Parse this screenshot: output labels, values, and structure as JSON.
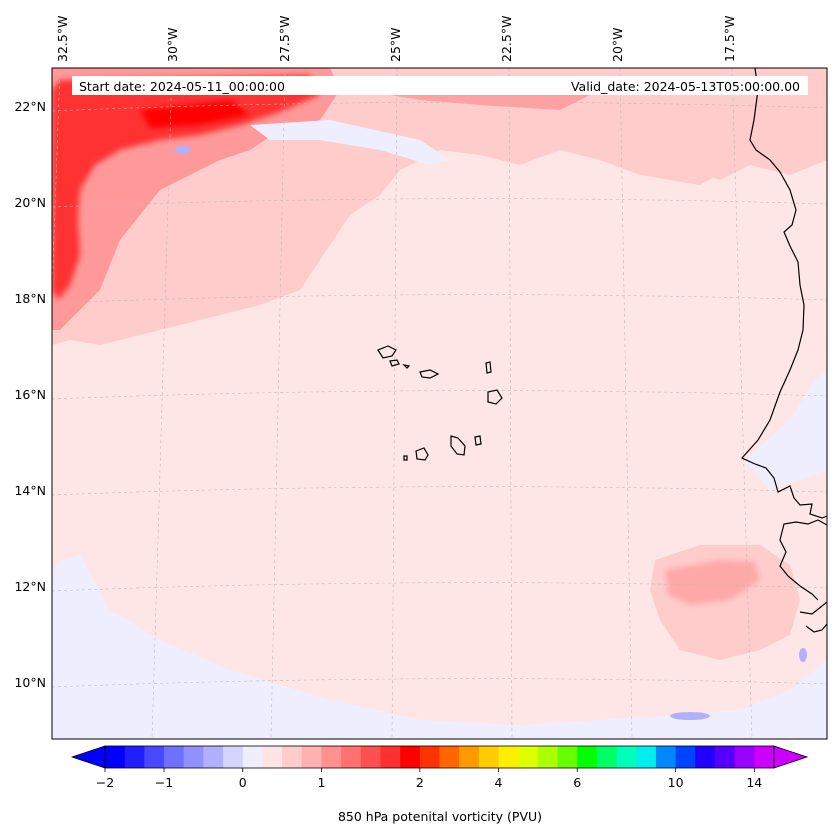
{
  "map": {
    "start_date": "Start date: 2024-05-11_00:00:00",
    "valid_date": "Valid_date: 2024-05-13T05:00:00.00",
    "lon_labels": [
      "32.5°W",
      "30°W",
      "27.5°W",
      "25°W",
      "22.5°W",
      "20°W",
      "17.5°W"
    ],
    "lat_labels": [
      "22°N",
      "20°N",
      "18°N",
      "16°N",
      "14°N",
      "12°N",
      "10°N"
    ],
    "gridlines": "dashed-light-grey",
    "colors": {
      "background_field": "#ffe6e6",
      "near_zero_negative": "#eeeeff",
      "weak_positive": "#ffcccc",
      "moderate_positive": "#ff9999",
      "strong_positive": "#ff3333",
      "coastline": "#000000"
    }
  },
  "colorbar": {
    "label": "850 hPa potenital vorticity (PVU)",
    "tick_labels": [
      "−2",
      "−1",
      "0",
      "1",
      "2",
      "4",
      "6",
      "10",
      "14"
    ],
    "extend": "both",
    "colors": [
      "#0000ff",
      "#2020ff",
      "#4848ff",
      "#7070ff",
      "#9090ff",
      "#b0b0ff",
      "#d4d4ff",
      "#eeeeff",
      "#ffe4e4",
      "#ffcccc",
      "#ffb0b0",
      "#ff9090",
      "#ff7070",
      "#ff5050",
      "#ff3030",
      "#ff0000",
      "#ff3300",
      "#ff6600",
      "#ff9900",
      "#ffcc00",
      "#ffee00",
      "#ddff00",
      "#aaff00",
      "#66ff00",
      "#00ff00",
      "#00ff66",
      "#00ffbb",
      "#00eeee",
      "#0088ff",
      "#0044ff",
      "#2200ff",
      "#5500ff",
      "#9900ff",
      "#cc00ff"
    ]
  }
}
